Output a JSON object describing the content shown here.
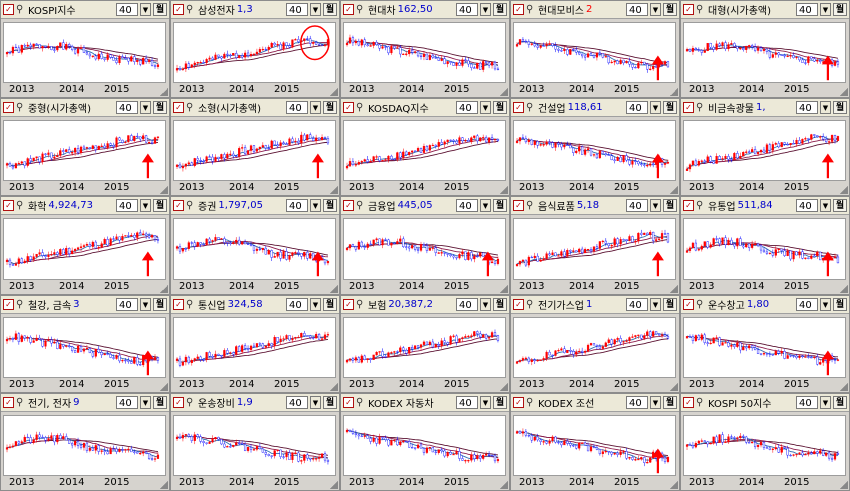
{
  "panels": [
    {
      "name": "KOSPI지수",
      "price": "",
      "period": "40",
      "week": "월",
      "trend": "mid",
      "seed": 1,
      "arrow": false,
      "circle": false
    },
    {
      "name": "삼성전자",
      "price": "1,3",
      "period": "40",
      "week": "월",
      "trend": "up",
      "seed": 2,
      "arrow": false,
      "circle": true
    },
    {
      "name": "현대차",
      "price": "162,50",
      "period": "40",
      "week": "월",
      "trend": "down",
      "seed": 3,
      "arrow": false,
      "circle": false
    },
    {
      "name": "현대모비스",
      "price": "2",
      "period": "40",
      "week": "월",
      "trend": "down",
      "seed": 4,
      "arrow": true,
      "circle": false
    },
    {
      "name": "대형(시가총액)",
      "price": "",
      "period": "40",
      "week": "월",
      "trend": "mid",
      "seed": 5,
      "arrow": true,
      "circle": false
    },
    {
      "name": "중형(시가총액)",
      "price": "",
      "period": "40",
      "week": "월",
      "trend": "up",
      "seed": 6,
      "arrow": true,
      "circle": false
    },
    {
      "name": "소형(시가총액)",
      "price": "",
      "period": "40",
      "week": "월",
      "trend": "up",
      "seed": 7,
      "arrow": true,
      "circle": false
    },
    {
      "name": "KOSDAQ지수",
      "price": "",
      "period": "40",
      "week": "월",
      "trend": "up",
      "seed": 8,
      "arrow": false,
      "circle": false
    },
    {
      "name": "건설업",
      "price": "118,61",
      "period": "40",
      "week": "월",
      "trend": "down",
      "seed": 9,
      "arrow": true,
      "circle": false
    },
    {
      "name": "비금속광물",
      "price": "1,",
      "period": "40",
      "week": "월",
      "trend": "up",
      "seed": 10,
      "arrow": true,
      "circle": false
    },
    {
      "name": "화학",
      "price": "4,924,73",
      "period": "40",
      "week": "월",
      "trend": "up",
      "seed": 11,
      "arrow": true,
      "circle": false
    },
    {
      "name": "증권",
      "price": "1,797,05",
      "period": "40",
      "week": "월",
      "trend": "mid",
      "seed": 12,
      "arrow": true,
      "circle": false
    },
    {
      "name": "금융업",
      "price": "445,05",
      "period": "40",
      "week": "월",
      "trend": "mid",
      "seed": 13,
      "arrow": true,
      "circle": false
    },
    {
      "name": "음식료품",
      "price": "5,18",
      "period": "40",
      "week": "월",
      "trend": "up",
      "seed": 14,
      "arrow": true,
      "circle": false
    },
    {
      "name": "유통업",
      "price": "511,84",
      "period": "40",
      "week": "월",
      "trend": "mid",
      "seed": 15,
      "arrow": true,
      "circle": false
    },
    {
      "name": "철강, 금속",
      "price": "3",
      "period": "40",
      "week": "월",
      "trend": "down",
      "seed": 16,
      "arrow": true,
      "circle": false
    },
    {
      "name": "통신업",
      "price": "324,58",
      "period": "40",
      "week": "월",
      "trend": "up",
      "seed": 17,
      "arrow": false,
      "circle": false
    },
    {
      "name": "보험",
      "price": "20,387,2",
      "period": "40",
      "week": "월",
      "trend": "up",
      "seed": 18,
      "arrow": false,
      "circle": false
    },
    {
      "name": "전기가스업",
      "price": "1",
      "period": "40",
      "week": "월",
      "trend": "up",
      "seed": 19,
      "arrow": false,
      "circle": false
    },
    {
      "name": "운수창고",
      "price": "1,80",
      "period": "40",
      "week": "월",
      "trend": "down",
      "seed": 20,
      "arrow": true,
      "circle": false
    },
    {
      "name": "전기, 전자",
      "price": "9",
      "period": "40",
      "week": "월",
      "trend": "mid",
      "seed": 21,
      "arrow": false,
      "circle": false
    },
    {
      "name": "운송장비",
      "price": "1,9",
      "period": "40",
      "week": "월",
      "trend": "down",
      "seed": 22,
      "arrow": false,
      "circle": false
    },
    {
      "name": "KODEX 자동차",
      "price": "",
      "period": "40",
      "week": "월",
      "trend": "down",
      "seed": 23,
      "arrow": false,
      "circle": false
    },
    {
      "name": "KODEX 조선",
      "price": "",
      "period": "40",
      "week": "월",
      "trend": "down",
      "seed": 24,
      "arrow": true,
      "circle": false
    },
    {
      "name": "KOSPI 50지수",
      "price": "",
      "period": "40",
      "week": "월",
      "trend": "mid",
      "seed": 25,
      "arrow": false,
      "circle": false
    }
  ],
  "x_labels": [
    "2013",
    "2014",
    "2015"
  ],
  "colors": {
    "up_candle": "#ff0000",
    "down_candle": "#0000ff",
    "ma_short": "#2e6eb0",
    "ma_mid": "#8b1a4a",
    "ma_long": "#5a1030",
    "price_text": "#0000cc",
    "arrow": "#ff0000"
  }
}
